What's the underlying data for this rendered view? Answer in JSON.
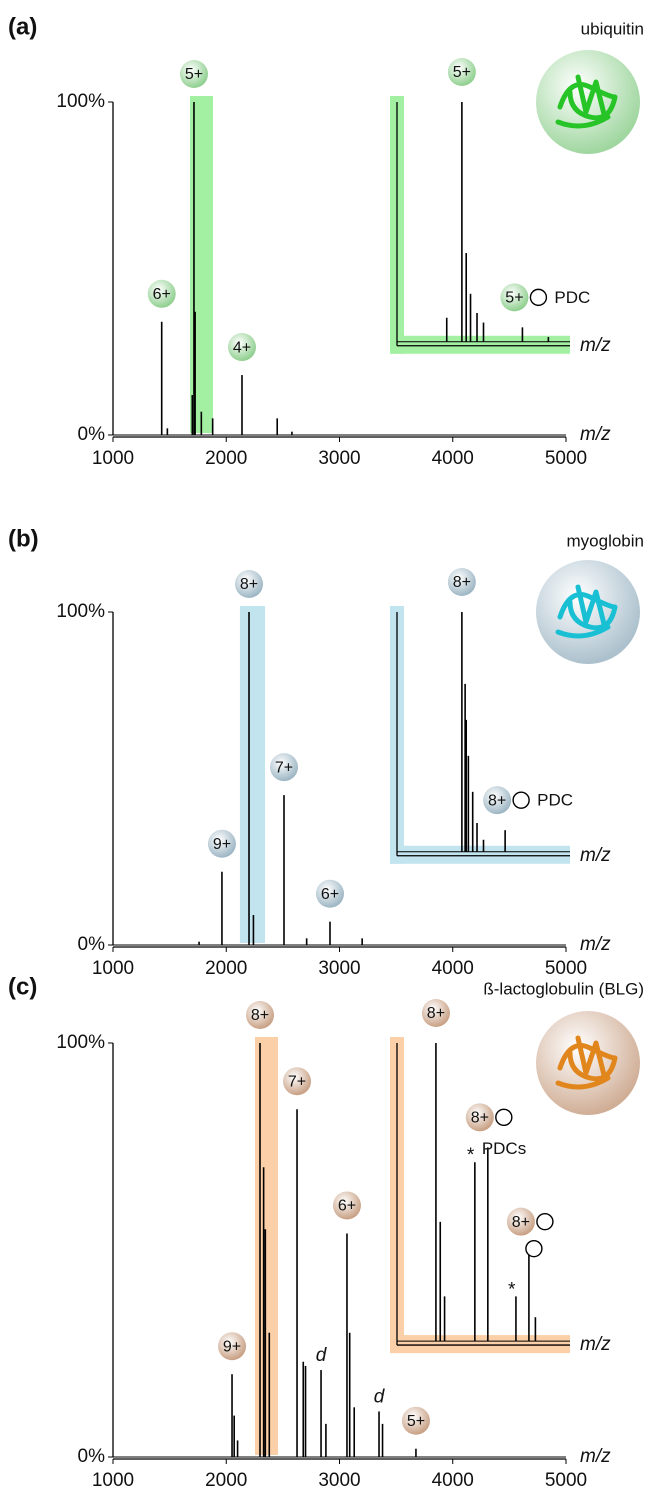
{
  "chart_data": [
    {
      "type": "spectrum",
      "panel_label": "(a)",
      "protein": "ubiquitin",
      "x_label": "m/z",
      "color": "#000000",
      "band_color": "#a3f0a3",
      "label_color": "#8fcf8f",
      "ribbon_color": "#27c427",
      "xlim": [
        1000,
        5000
      ],
      "xticks": [
        1000,
        2000,
        3000,
        4000,
        5000
      ],
      "ylim": [
        0,
        100
      ],
      "yticks": [
        {
          "value": 0,
          "label": "0%"
        },
        {
          "value": 100,
          "label": "100%"
        }
      ],
      "highlight": [
        1680,
        1883
      ],
      "x": [
        1430,
        1480,
        1700,
        1715,
        1725,
        1780,
        1880,
        2139,
        2450,
        2580
      ],
      "values": [
        34,
        2,
        12,
        100,
        37,
        7,
        5,
        18,
        5,
        1
      ],
      "peak_labels": [
        {
          "text": "6+",
          "x": 1430,
          "y": 34
        },
        {
          "text": "5+",
          "x": 1715,
          "y": 100
        },
        {
          "text": "4+",
          "x": 2139,
          "y": 18
        }
      ],
      "annotations": [],
      "inset": {
        "x_label": "m/z",
        "xlim": [
          1685,
          1765
        ],
        "ylim": [
          0,
          100
        ],
        "pdc_label": "PDC",
        "x": [
          1708,
          1715,
          1717,
          1719,
          1722,
          1725,
          1743,
          1755
        ],
        "values": [
          10,
          100,
          37,
          20,
          12,
          8,
          6,
          2
        ],
        "peak_labels": [
          {
            "text": "5+",
            "x": 1715,
            "y": 100,
            "adducts": 0
          },
          {
            "text": "5+",
            "x": 1743,
            "y": 6,
            "adducts": 1
          }
        ],
        "annotations": []
      }
    },
    {
      "type": "spectrum",
      "panel_label": "(b)",
      "protein": "myoglobin",
      "x_label": "m/z",
      "color": "#000000",
      "band_color": "#c2e4ef",
      "label_color": "#9db6c4",
      "ribbon_color": "#19c0d4",
      "xlim": [
        1000,
        5000
      ],
      "xticks": [
        1000,
        2000,
        3000,
        4000,
        5000
      ],
      "ylim": [
        0,
        100
      ],
      "yticks": [
        {
          "value": 0,
          "label": "0%"
        },
        {
          "value": 100,
          "label": "100%"
        }
      ],
      "highlight": [
        2121,
        2342
      ],
      "x": [
        1760,
        1962,
        2201,
        2240,
        2510,
        2710,
        2916,
        3200
      ],
      "values": [
        1,
        22,
        100,
        9,
        45,
        2,
        7,
        2
      ],
      "peak_labels": [
        {
          "text": "9+",
          "x": 1962,
          "y": 22
        },
        {
          "text": "8+",
          "x": 2201,
          "y": 100
        },
        {
          "text": "7+",
          "x": 2510,
          "y": 45
        },
        {
          "text": "6+",
          "x": 2916,
          "y": 7
        }
      ],
      "annotations": [],
      "inset": {
        "x_label": "m/z",
        "xlim": [
          2170,
          2250
        ],
        "ylim": [
          0,
          100
        ],
        "pdc_label": "PDC",
        "x": [
          2200,
          2201.5,
          2202,
          2203,
          2205,
          2207,
          2210,
          2220
        ],
        "values": [
          100,
          70,
          55,
          40,
          25,
          12,
          5,
          9
        ],
        "peak_labels": [
          {
            "text": "8+",
            "x": 2200,
            "y": 100,
            "adducts": 0
          },
          {
            "text": "8+",
            "x": 2220,
            "y": 9,
            "adducts": 1
          }
        ],
        "annotations": []
      }
    },
    {
      "type": "spectrum",
      "panel_label": "(c)",
      "protein": "ß-lactoglobulin (BLG)",
      "x_label": "m/z",
      "color": "#000000",
      "band_color": "#fbd0a8",
      "label_color": "#c8a084",
      "ribbon_color": "#e0861c",
      "xlim": [
        1000,
        5000
      ],
      "xticks": [
        1000,
        2000,
        3000,
        4000,
        5000
      ],
      "ylim": [
        0,
        100
      ],
      "yticks": [
        {
          "value": 0,
          "label": "0%"
        },
        {
          "value": 100,
          "label": "100%"
        }
      ],
      "highlight": [
        2254,
        2457
      ],
      "x": [
        2051,
        2070,
        2100,
        2298,
        2330,
        2345,
        2380,
        2625,
        2680,
        2700,
        2837,
        2880,
        3066,
        3090,
        3130,
        3349,
        3380,
        3675
      ],
      "values": [
        20,
        10,
        4,
        100,
        70,
        55,
        30,
        84,
        23,
        22,
        21,
        8,
        54,
        30,
        12,
        11,
        8,
        2
      ],
      "peak_labels": [
        {
          "text": "9+",
          "x": 2051,
          "y": 20
        },
        {
          "text": "8+",
          "x": 2298,
          "y": 100
        },
        {
          "text": "7+",
          "x": 2625,
          "y": 84
        },
        {
          "text": "6+",
          "x": 3066,
          "y": 54
        },
        {
          "text": "5+",
          "x": 3675,
          "y": 2
        }
      ],
      "annotations": [
        {
          "text": "d",
          "x": 2837,
          "y": 21
        },
        {
          "text": "d",
          "x": 3349,
          "y": 11
        }
      ],
      "inset": {
        "x_label": "m/z",
        "xlim": [
          2280,
          2360
        ],
        "ylim": [
          0,
          100
        ],
        "pdc_label": "PDCs",
        "x": [
          2298,
          2300,
          2302,
          2316,
          2322,
          2335,
          2341,
          2344
        ],
        "values": [
          100,
          40,
          15,
          60,
          65,
          15,
          30,
          8
        ],
        "peak_labels": [
          {
            "text": "8+",
            "x": 2298,
            "y": 100,
            "adducts": 0
          },
          {
            "text": "8+",
            "x": 2322,
            "y": 65,
            "adducts": 1
          },
          {
            "text": "8+",
            "x": 2341,
            "y": 30,
            "adducts": 2
          }
        ],
        "annotations": [
          {
            "text": "*",
            "x": 2316,
            "y": 60
          },
          {
            "text": "*",
            "x": 2335,
            "y": 15
          }
        ]
      }
    }
  ]
}
